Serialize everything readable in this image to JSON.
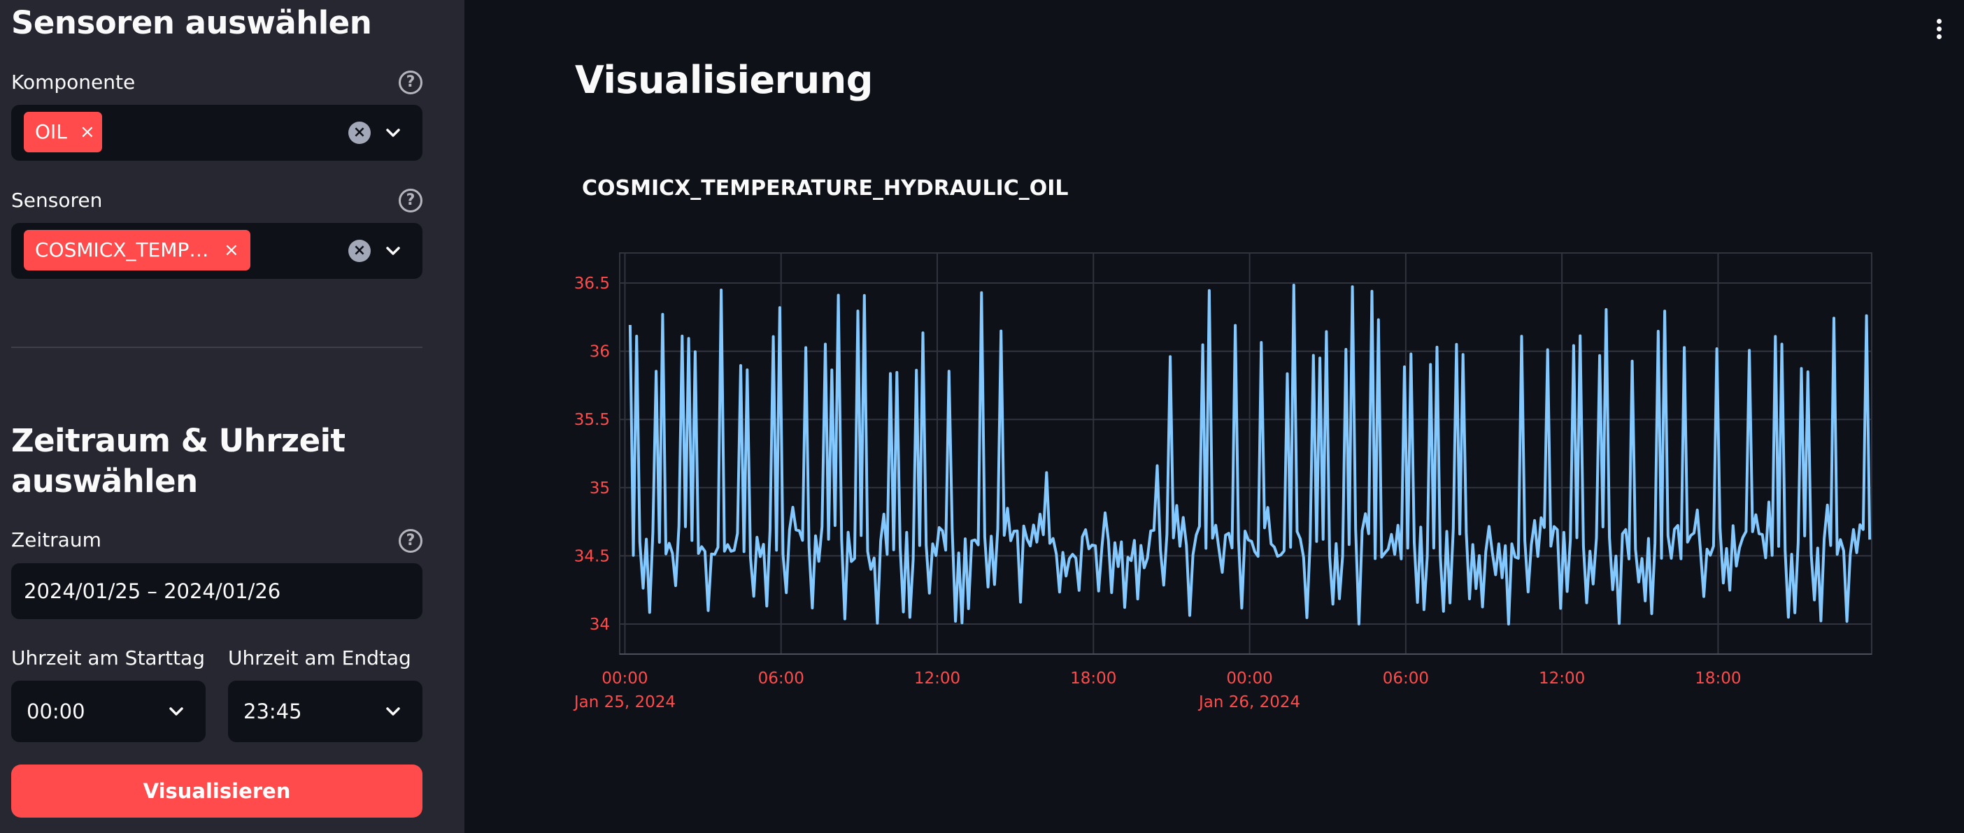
{
  "sidebar": {
    "sensors_heading": "Sensoren auswählen",
    "component": {
      "label": "Komponente",
      "selected_tag": "OIL",
      "tag_remove": "×",
      "clear": "×"
    },
    "sensors": {
      "label": "Sensoren",
      "selected_tag": "COSMICX_TEMP…",
      "tag_remove": "×",
      "clear": "×"
    },
    "timerange_heading_line1": "Zeitraum & Uhrzeit",
    "timerange_heading_line2": "auswählen",
    "timerange": {
      "label": "Zeitraum",
      "value": "2024/01/25 – 2024/01/26"
    },
    "start_time": {
      "label": "Uhrzeit am Starttag",
      "value": "00:00"
    },
    "end_time": {
      "label": "Uhrzeit am Endtag",
      "value": "23:45"
    },
    "submit_label": "Visualisieren",
    "help": "?"
  },
  "main": {
    "title": "Visualisierung"
  },
  "chart_data": {
    "type": "line",
    "title": "COSMICX_TEMPERATURE_HYDRAULIC_OIL",
    "xlabel": "",
    "ylabel": "",
    "x_range_hours": [
      -0.2,
      47.9
    ],
    "ylim": [
      33.78,
      36.72
    ],
    "y_ticks": [
      34,
      34.5,
      35,
      35.5,
      36,
      36.5
    ],
    "y_tick_labels": [
      "34",
      "34.5",
      "35",
      "35.5",
      "36",
      "36.5"
    ],
    "x_ticks": [
      "00:00",
      "06:00",
      "12:00",
      "18:00",
      "00:00",
      "06:00",
      "12:00",
      "18:00"
    ],
    "x_tick_dates": [
      "Jan 25, 2024",
      "",
      "",
      "",
      "Jan 26, 2024",
      "",
      "",
      ""
    ],
    "grid": true,
    "series": [
      {
        "color": "#83c9ff",
        "sampling": "15 min",
        "start": "2024-01-25 00:00",
        "end": "2024-01-26 23:45",
        "baseline": 34.6,
        "min": 34.0,
        "max": 36.5,
        "peak_periods": [
          {
            "start": "2024-01-25 00:15",
            "end": "2024-01-25 04:30"
          },
          {
            "start": "2024-01-25 04:30",
            "end": "2024-01-25 15:00"
          },
          {
            "start": "2024-01-25 21:00",
            "end": "2024-01-26 23:45"
          }
        ],
        "quiet_periods": [
          {
            "start": "2024-01-25 15:00",
            "end": "2024-01-25 21:00",
            "range": [
              34.1,
              35.3
            ]
          }
        ]
      }
    ]
  }
}
